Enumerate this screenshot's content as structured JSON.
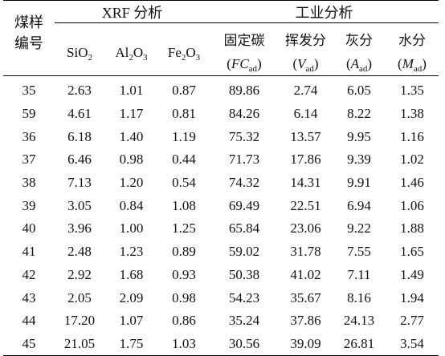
{
  "headers": {
    "coal_sample": [
      "煤样",
      "编号"
    ],
    "xrf_group": "XRF 分析",
    "proximate_group": "工业分析",
    "sio2": {
      "base": "SiO",
      "sub": "2"
    },
    "al2o3": {
      "a": "Al",
      "a_sub": "2",
      "b": "O",
      "b_sub": "3"
    },
    "fe2o3": {
      "a": "Fe",
      "a_sub": "2",
      "b": "O",
      "b_sub": "3"
    },
    "fixed_carbon": {
      "name": "固定碳",
      "sym": "FC",
      "sub": "ad"
    },
    "volatile": {
      "name": "挥发分",
      "sym": "V",
      "sub": "ad"
    },
    "ash": {
      "name": "灰分",
      "sym": "A",
      "sub": "ad"
    },
    "moisture": {
      "name": "水分",
      "sym": "M",
      "sub": "ad"
    }
  },
  "rows": [
    [
      "35",
      "2.63",
      "1.01",
      "0.87",
      "89.86",
      "2.74",
      "6.05",
      "1.35"
    ],
    [
      "59",
      "4.61",
      "1.17",
      "0.81",
      "84.26",
      "6.14",
      "8.22",
      "1.38"
    ],
    [
      "36",
      "6.18",
      "1.40",
      "1.19",
      "75.32",
      "13.57",
      "9.95",
      "1.16"
    ],
    [
      "37",
      "6.46",
      "0.98",
      "0.44",
      "71.73",
      "17.86",
      "9.39",
      "1.02"
    ],
    [
      "38",
      "7.13",
      "1.20",
      "0.54",
      "74.32",
      "14.31",
      "9.91",
      "1.46"
    ],
    [
      "39",
      "3.05",
      "0.84",
      "1.08",
      "69.49",
      "22.51",
      "6.94",
      "1.06"
    ],
    [
      "40",
      "3.96",
      "1.00",
      "1.25",
      "65.84",
      "23.06",
      "9.22",
      "1.88"
    ],
    [
      "41",
      "2.48",
      "1.23",
      "0.89",
      "59.02",
      "31.78",
      "7.55",
      "1.65"
    ],
    [
      "42",
      "2.92",
      "1.68",
      "0.93",
      "50.38",
      "41.02",
      "7.11",
      "1.49"
    ],
    [
      "43",
      "2.05",
      "2.09",
      "0.98",
      "54.23",
      "35.67",
      "8.16",
      "1.94"
    ],
    [
      "44",
      "17.20",
      "1.07",
      "0.86",
      "35.24",
      "37.86",
      "24.13",
      "2.77"
    ],
    [
      "45",
      "21.05",
      "1.75",
      "1.03",
      "30.56",
      "39.09",
      "26.81",
      "3.54"
    ]
  ]
}
